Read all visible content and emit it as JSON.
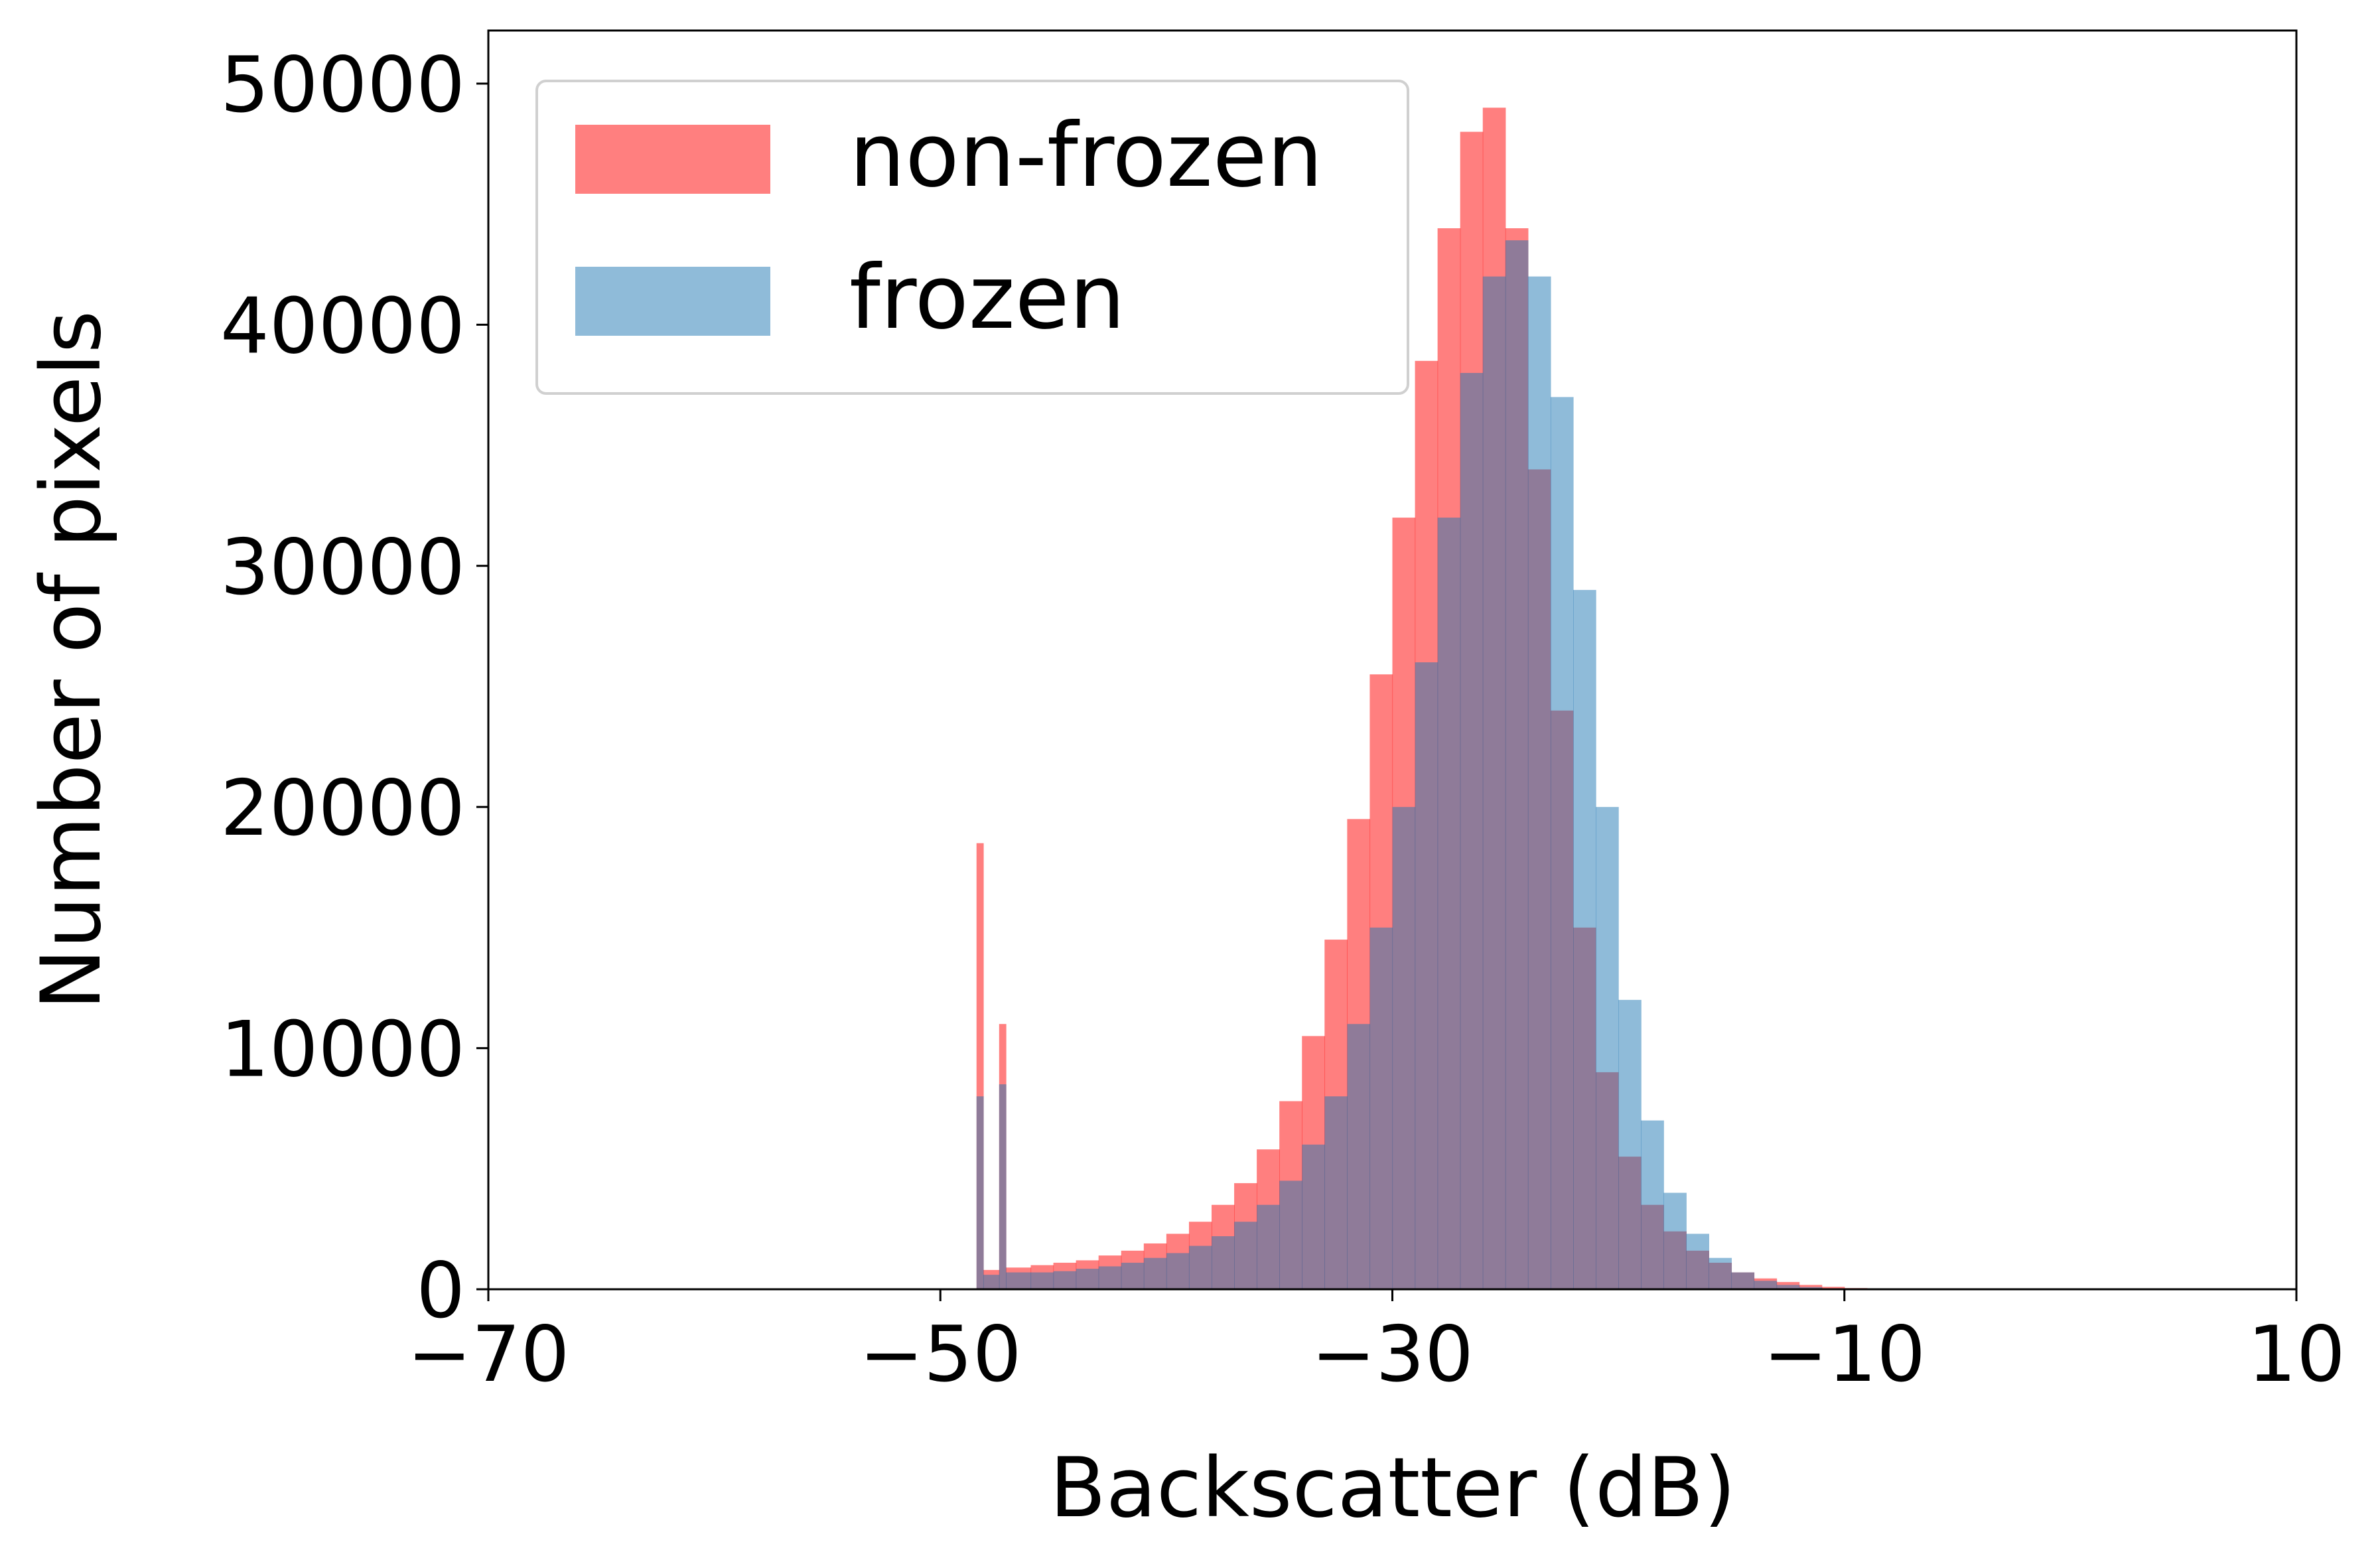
{
  "chart_data": {
    "type": "histogram",
    "xlabel": "Backscatter (dB)",
    "ylabel": "Number of pixels",
    "xlim": [
      -70,
      10
    ],
    "ylim": [
      0,
      52200
    ],
    "xticks": [
      {
        "value": -70,
        "label": "−70"
      },
      {
        "value": -50,
        "label": "−50"
      },
      {
        "value": -30,
        "label": "−30"
      },
      {
        "value": -10,
        "label": "−10"
      },
      10
    ],
    "yticks": [
      0,
      10000,
      20000,
      30000,
      40000,
      50000
    ],
    "grid": false,
    "legend": "upper left",
    "alpha": 0.5,
    "bins": [
      -48.4,
      -48.1,
      -47.4,
      -47.1,
      -46,
      -45,
      -44,
      -43,
      -42,
      -41,
      -40,
      -39,
      -38,
      -37,
      -36,
      -35,
      -34,
      -33,
      -32,
      -31,
      -30,
      -29,
      -28,
      -27,
      -26,
      -25,
      -24,
      -23,
      -22,
      -21,
      -20,
      -19,
      -18,
      -17,
      -16,
      -15,
      -14,
      -13,
      -12,
      -11,
      -10,
      -9,
      -8
    ],
    "series": [
      {
        "name": "non-frozen",
        "color": "#ff0000",
        "values": [
          18500,
          800,
          11000,
          900,
          1000,
          1100,
          1200,
          1400,
          1600,
          1900,
          2300,
          2800,
          3500,
          4400,
          5800,
          7800,
          10500,
          14500,
          19500,
          25500,
          32000,
          38500,
          44000,
          48000,
          49000,
          44000,
          34000,
          24000,
          15000,
          9000,
          5500,
          3500,
          2400,
          1600,
          1100,
          700,
          450,
          300,
          180,
          100,
          50,
          20
        ]
      },
      {
        "name": "frozen",
        "color": "#1f77b4",
        "values": [
          8000,
          600,
          8500,
          700,
          700,
          750,
          850,
          950,
          1100,
          1300,
          1500,
          1800,
          2200,
          2800,
          3500,
          4500,
          6000,
          8000,
          11000,
          15000,
          20000,
          26000,
          32000,
          38000,
          42000,
          43500,
          42000,
          37000,
          29000,
          20000,
          12000,
          7000,
          4000,
          2300,
          1300,
          700,
          350,
          180,
          90,
          40,
          15,
          5
        ]
      }
    ]
  }
}
